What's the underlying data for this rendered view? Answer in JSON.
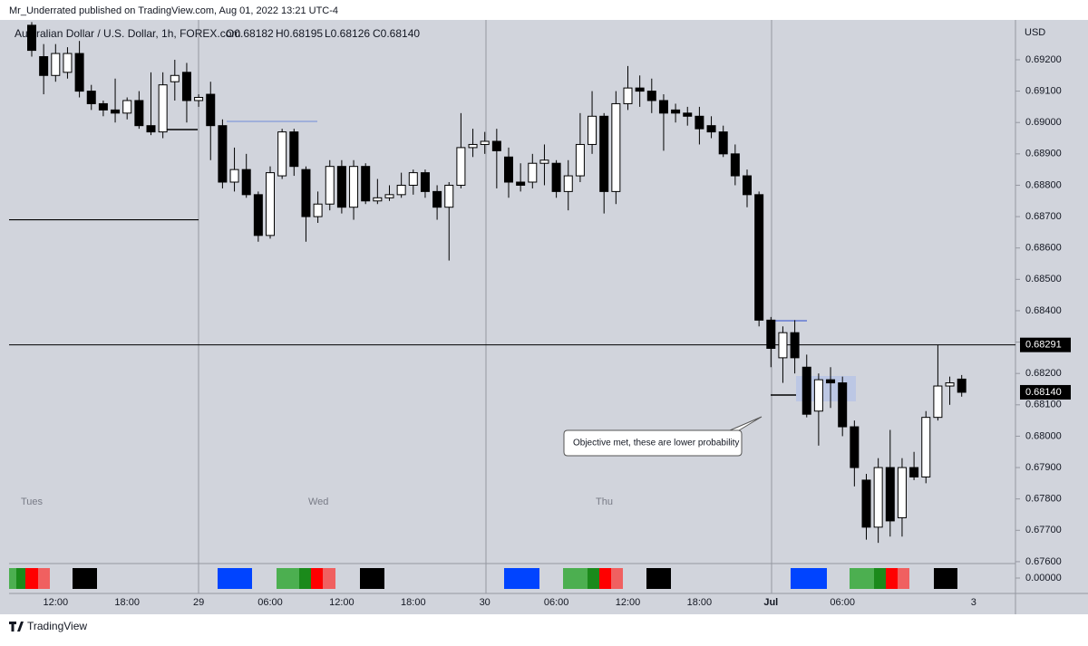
{
  "header": {
    "published": "Mr_Underrated published on TradingView.com, Aug 01, 2022 13:21 UTC-4",
    "brand": "TradingView"
  },
  "chart_data": {
    "type": "candlestick",
    "title": "Australian Dollar / U.S. Dollar, 1h, FOREX.com",
    "ohlc_labels": [
      "O0.68182",
      "H0.68195",
      "L0.68126",
      "C0.68140"
    ],
    "currency": "USD",
    "categories": [
      null,
      null,
      "12:00",
      null,
      null,
      null,
      null,
      null,
      "18:00",
      null,
      null,
      null,
      null,
      null,
      "29",
      null,
      null,
      null,
      null,
      null,
      "06:00",
      null,
      null,
      null,
      null,
      null,
      "12:00",
      null,
      null,
      null,
      null,
      null,
      "18:00",
      null,
      null,
      null,
      null,
      null,
      "30",
      null,
      null,
      null,
      null,
      null,
      "06:00",
      null,
      null,
      null,
      null,
      null,
      "12:00",
      null,
      null,
      null,
      null,
      null,
      "18:00",
      null,
      null,
      null,
      null,
      null,
      "Jul",
      null,
      null,
      null,
      null,
      null,
      "06:00",
      null,
      null,
      null,
      null,
      null,
      null,
      null,
      null,
      null,
      null,
      "3"
    ],
    "open": [
      0.6931,
      0.6921,
      0.6915,
      0.6916,
      0.6922,
      0.691,
      0.6906,
      0.6904,
      0.6903,
      0.6907,
      0.6899,
      0.6897,
      0.6913,
      0.6916,
      0.6907,
      0.6909,
      0.6899,
      0.6881,
      0.6885,
      0.6877,
      0.6864,
      0.6883,
      0.6897,
      0.6885,
      0.687,
      0.6874,
      0.6886,
      0.6873,
      0.6886,
      0.6875,
      0.6876,
      0.6877,
      0.688,
      0.6884,
      0.6878,
      0.6873,
      0.688,
      0.6892,
      0.6893,
      0.6894,
      0.6889,
      0.6881,
      0.6881,
      0.6887,
      0.6887,
      0.6878,
      0.6883,
      0.6893,
      0.6902,
      0.6878,
      0.6906,
      0.6911,
      0.691,
      0.6907,
      0.6904,
      0.6903,
      0.6902,
      0.6899,
      0.6897,
      0.689,
      0.6883,
      0.6877,
      0.6837,
      0.6825,
      0.6833,
      0.6822,
      0.6808,
      0.6818,
      0.6817,
      0.6803,
      0.6786,
      0.6771,
      0.679,
      0.6774,
      0.679,
      0.6787,
      0.6806,
      0.6816,
      0.68182,
      null
    ],
    "high": [
      0.6932,
      0.6925,
      0.6925,
      0.6924,
      0.6926,
      0.6912,
      0.6907,
      0.6914,
      0.6908,
      0.691,
      0.6916,
      0.6916,
      0.692,
      0.6919,
      0.6909,
      0.6913,
      0.6901,
      0.6892,
      0.689,
      0.6878,
      0.6886,
      0.6898,
      0.6898,
      0.6886,
      0.6878,
      0.6888,
      0.6888,
      0.6888,
      0.6887,
      0.6882,
      0.688,
      0.6884,
      0.6885,
      0.6885,
      0.688,
      0.6881,
      0.6903,
      0.6898,
      0.6897,
      0.6898,
      0.6892,
      0.6887,
      0.689,
      0.6893,
      0.6888,
      0.6888,
      0.6903,
      0.691,
      0.6903,
      0.691,
      0.6918,
      0.6915,
      0.6914,
      0.6909,
      0.6906,
      0.6905,
      0.6905,
      0.6902,
      0.6899,
      0.6893,
      0.6885,
      0.6878,
      0.6838,
      0.6835,
      0.6837,
      0.6826,
      0.682,
      0.6822,
      0.6819,
      0.6805,
      0.6788,
      0.6793,
      0.6802,
      0.6793,
      0.6795,
      0.6808,
      0.6829,
      0.6819,
      0.68195,
      null
    ],
    "low": [
      0.6921,
      0.6909,
      0.6913,
      0.6914,
      0.6908,
      0.6904,
      0.6902,
      0.69,
      0.6901,
      0.6898,
      0.6896,
      0.6895,
      0.6907,
      0.69,
      0.6905,
      0.6888,
      0.6879,
      0.6878,
      0.6876,
      0.6862,
      0.6863,
      0.6882,
      0.6883,
      0.6862,
      0.6868,
      0.6872,
      0.6871,
      0.6869,
      0.6874,
      0.6874,
      0.6875,
      0.6876,
      0.6877,
      0.6876,
      0.6869,
      0.6856,
      0.6879,
      0.6889,
      0.689,
      0.6879,
      0.6876,
      0.6878,
      0.6879,
      0.688,
      0.6876,
      0.6872,
      0.6881,
      0.689,
      0.6871,
      0.6874,
      0.6904,
      0.6905,
      0.6903,
      0.6891,
      0.69,
      0.6899,
      0.6893,
      0.6895,
      0.6889,
      0.688,
      0.6873,
      0.6835,
      0.6822,
      0.6817,
      0.682,
      0.6806,
      0.6797,
      0.6809,
      0.68,
      0.6784,
      0.6767,
      0.6766,
      0.6768,
      0.6768,
      0.6786,
      0.6785,
      0.6805,
      0.681,
      0.68126,
      null
    ],
    "close": [
      0.6923,
      0.6915,
      0.6922,
      0.6922,
      0.691,
      0.6906,
      0.6904,
      0.6903,
      0.6907,
      0.6899,
      0.6897,
      0.6912,
      0.6915,
      0.6907,
      0.6908,
      0.6899,
      0.6881,
      0.6885,
      0.6877,
      0.6864,
      0.6884,
      0.6897,
      0.6886,
      0.687,
      0.6874,
      0.6886,
      0.6873,
      0.6886,
      0.6875,
      0.6876,
      0.6877,
      0.688,
      0.6884,
      0.6878,
      0.6873,
      0.688,
      0.6892,
      0.6893,
      0.6894,
      0.6891,
      0.6881,
      0.688,
      0.6887,
      0.6888,
      0.6878,
      0.6883,
      0.6893,
      0.6902,
      0.6878,
      0.6906,
      0.6911,
      0.691,
      0.6907,
      0.6903,
      0.6903,
      0.6902,
      0.6898,
      0.6897,
      0.689,
      0.6883,
      0.6877,
      0.6837,
      0.6828,
      0.6833,
      0.6825,
      0.6807,
      0.6818,
      0.6817,
      0.6803,
      0.679,
      0.6771,
      0.679,
      0.6773,
      0.679,
      0.6787,
      0.6806,
      0.6816,
      0.6817,
      0.6814,
      null
    ],
    "ylim": [
      0.67594,
      0.69327
    ],
    "yticks": [
      {
        "value": 0.692,
        "label": "0.69200"
      },
      {
        "value": 0.691,
        "label": "0.69100"
      },
      {
        "value": 0.69,
        "label": "0.69000"
      },
      {
        "value": 0.689,
        "label": "0.68900"
      },
      {
        "value": 0.688,
        "label": "0.68800"
      },
      {
        "value": 0.687,
        "label": "0.68700"
      },
      {
        "value": 0.686,
        "label": "0.68600"
      },
      {
        "value": 0.685,
        "label": "0.68500"
      },
      {
        "value": 0.684,
        "label": "0.68400"
      },
      {
        "value": 0.683,
        "label": "0.68300"
      },
      {
        "value": 0.682,
        "label": "0.68200"
      },
      {
        "value": 0.681,
        "label": "0.68100"
      },
      {
        "value": 0.68,
        "label": "0.68000"
      },
      {
        "value": 0.679,
        "label": "0.67900"
      },
      {
        "value": 0.678,
        "label": "0.67800"
      },
      {
        "value": 0.677,
        "label": "0.67700"
      },
      {
        "value": 0.676,
        "label": "0.67600"
      }
    ],
    "price_line": 0.68291,
    "last_price": {
      "value": 0.6814,
      "label": "0.68140"
    },
    "level_line": 0.6869,
    "day_labels": [
      "Tues",
      "Wed",
      "Thu"
    ],
    "annotation": "Objective met, these are lower probability",
    "indicator_ticks": [
      {
        "value": 0,
        "label": "0.00000"
      }
    ],
    "up_color": "#ffffff",
    "down_color": "#000000"
  }
}
